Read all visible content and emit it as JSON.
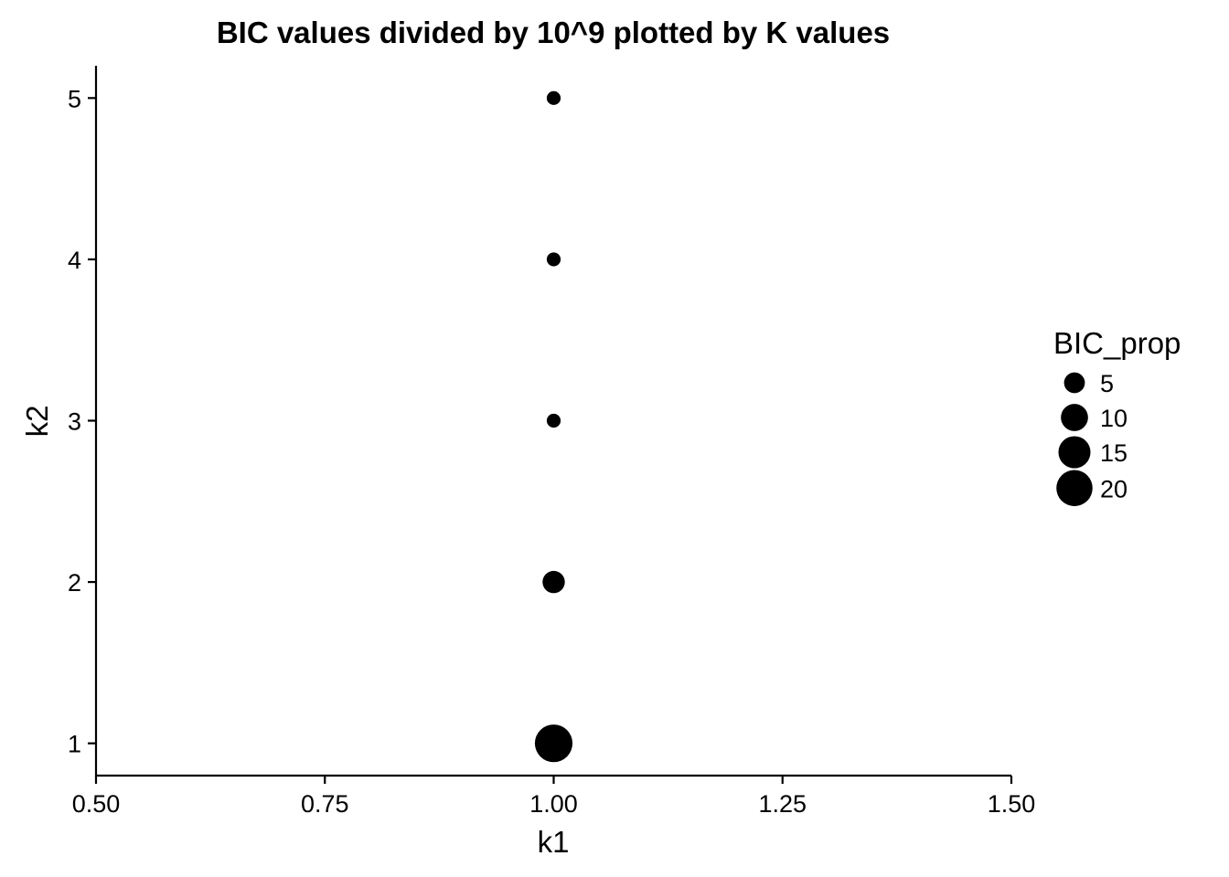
{
  "chart_data": {
    "type": "scatter",
    "title": "BIC values divided by 10^9 plotted by K values",
    "xlabel": "k1",
    "ylabel": "k2",
    "xlim": [
      0.5,
      1.5
    ],
    "ylim": [
      0.8,
      5.2
    ],
    "x_ticks": [
      "0.50",
      "0.75",
      "1.00",
      "1.25",
      "1.50"
    ],
    "x_tick_values": [
      0.5,
      0.75,
      1.0,
      1.25,
      1.5
    ],
    "y_ticks": [
      "1",
      "2",
      "3",
      "4",
      "5"
    ],
    "y_tick_values": [
      1,
      2,
      3,
      4,
      5
    ],
    "grid": false,
    "size_variable": "BIC_prop",
    "points": [
      {
        "x": 1.0,
        "y": 1,
        "size": 22
      },
      {
        "x": 1.0,
        "y": 2,
        "size": 6
      },
      {
        "x": 1.0,
        "y": 3,
        "size": 1.5
      },
      {
        "x": 1.0,
        "y": 4,
        "size": 1.5
      },
      {
        "x": 1.0,
        "y": 5,
        "size": 1.5
      }
    ],
    "legend": {
      "title": "BIC_prop",
      "placement": "right",
      "entries": [
        {
          "label": "5",
          "value": 5
        },
        {
          "label": "10",
          "value": 10
        },
        {
          "label": "15",
          "value": 15
        },
        {
          "label": "20",
          "value": 20
        }
      ]
    },
    "colors": {
      "point": "#000000",
      "axis": "#000000",
      "background": "#ffffff"
    }
  }
}
